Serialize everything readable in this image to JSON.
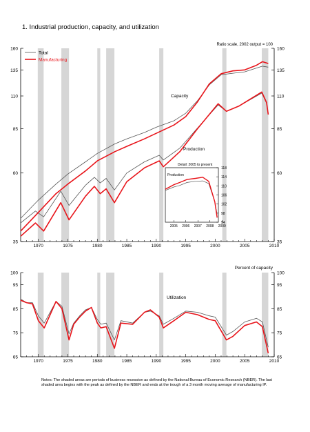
{
  "page": {
    "title": "1.  Industrial production, capacity, and utilization",
    "notes": "Notes: The shaded areas are periods of business recession as defined by the National Bureau of Economic Research (NBER). The last shaded area begins with the peak as defined by the NBER and ends at the trough of a 3 month moving average of manufacturing IP."
  },
  "colors": {
    "total": "#555555",
    "manufacturing": "#e8141a",
    "recession": "#d6d6d6",
    "axis": "#000000"
  },
  "chart_data": [
    {
      "type": "line",
      "id": "top",
      "scale": "log",
      "ylim": [
        35,
        160
      ],
      "xlim": [
        1967,
        2010
      ],
      "yticks": [
        35,
        60,
        85,
        110,
        135,
        160
      ],
      "xticks": [
        1970,
        1975,
        1980,
        1985,
        1990,
        1995,
        2000,
        2005,
        2010
      ],
      "scale_note": "Ratio scale, 2002 output = 100",
      "legend": [
        "Total",
        "Manufacturing"
      ],
      "legend_position": "top-left",
      "annotations": [
        "Capacity",
        "Production"
      ],
      "recessions": [
        [
          1969.9,
          1970.9
        ],
        [
          1973.9,
          1975.2
        ],
        [
          1980.0,
          1980.5
        ],
        [
          1981.5,
          1982.9
        ],
        [
          1990.5,
          1991.2
        ],
        [
          2001.2,
          2001.9
        ],
        [
          2007.9,
          2009.0
        ]
      ],
      "series": [
        {
          "name": "Total",
          "role": "capacity",
          "x": [
            1967,
            1970,
            1973,
            1975,
            1978,
            1980,
            1983,
            1985,
            1988,
            1990,
            1993,
            1995,
            1997,
            1999,
            2001,
            2003,
            2005,
            2007,
            2008,
            2009
          ],
          "values": [
            42.0,
            48.5,
            55.0,
            59.5,
            65.5,
            70.0,
            75.5,
            78.5,
            82.5,
            86.0,
            90.5,
            96.0,
            106.0,
            120.0,
            130.0,
            131.5,
            133.0,
            137.0,
            139.0,
            138.0
          ]
        },
        {
          "name": "Manufacturing",
          "role": "capacity",
          "x": [
            1967,
            1970,
            1973,
            1975,
            1978,
            1980,
            1983,
            1985,
            1988,
            1990,
            1993,
            1995,
            1997,
            1999,
            2001,
            2003,
            2005,
            2007,
            2008,
            2009
          ],
          "values": [
            38.0,
            44.0,
            51.0,
            55.0,
            61.0,
            66.0,
            71.0,
            74.0,
            78.5,
            82.0,
            87.5,
            93.5,
            105.0,
            121.0,
            131.0,
            134.0,
            135.0,
            140.0,
            144.0,
            142.0
          ]
        },
        {
          "name": "Total",
          "role": "production",
          "x": [
            1967,
            1969.5,
            1970.9,
            1973.8,
            1975.2,
            1978,
            1979.5,
            1980.5,
            1981.5,
            1982.9,
            1985,
            1988,
            1990.5,
            1991.2,
            1994,
            1997,
            2000.5,
            2001.9,
            2004,
            2007.9,
            2008.7,
            2009
          ],
          "values": [
            40.5,
            44.5,
            42.5,
            52.0,
            46.5,
            54.5,
            58.0,
            55.5,
            57.5,
            52.5,
            60.0,
            65.5,
            69.0,
            66.5,
            73.0,
            85.5,
            102.5,
            97.5,
            101.5,
            112.5,
            104.0,
            96.0
          ]
        },
        {
          "name": "Manufacturing",
          "role": "production",
          "x": [
            1967,
            1969.5,
            1970.9,
            1973.8,
            1975.2,
            1978,
            1979.5,
            1980.5,
            1981.5,
            1982.9,
            1985,
            1988,
            1990.5,
            1991.2,
            1994,
            1997,
            2000.5,
            2001.9,
            2004,
            2007.9,
            2008.7,
            2009
          ],
          "values": [
            36.5,
            40.5,
            38.0,
            47.5,
            41.5,
            50.0,
            54.0,
            51.0,
            53.0,
            47.5,
            56.0,
            62.5,
            66.0,
            63.0,
            71.0,
            85.0,
            103.5,
            97.5,
            101.5,
            113.5,
            104.5,
            95.0
          ]
        }
      ]
    },
    {
      "type": "line",
      "id": "inset",
      "title": "Detail: 2005 to present",
      "annotation": "Production",
      "ylim": [
        94,
        118
      ],
      "yticks": [
        94,
        98,
        102,
        106,
        110,
        114,
        118
      ],
      "xlim": [
        2004.8,
        2009.2
      ],
      "xticks": [
        "2005",
        "2006",
        "2007",
        "2008",
        "2009"
      ],
      "series": [
        {
          "name": "Total",
          "x": [
            2004.8,
            2005.5,
            2006.0,
            2006.6,
            2007.3,
            2007.9,
            2008.4,
            2008.9,
            2009.1
          ],
          "values": [
            108.0,
            109.5,
            110.2,
            111.5,
            112.0,
            112.2,
            111.0,
            103.0,
            97.5
          ]
        },
        {
          "name": "Manufacturing",
          "x": [
            2004.8,
            2005.5,
            2006.0,
            2006.6,
            2007.3,
            2007.9,
            2008.4,
            2008.9,
            2009.1
          ],
          "values": [
            108.5,
            110.5,
            111.5,
            112.8,
            113.3,
            113.8,
            112.0,
            103.0,
            96.0
          ]
        }
      ]
    },
    {
      "type": "line",
      "id": "bottom",
      "ylim": [
        65,
        100
      ],
      "xlim": [
        1967,
        2010
      ],
      "yticks": [
        65,
        75,
        85,
        95,
        100
      ],
      "xticks": [
        1970,
        1975,
        1980,
        1985,
        1990,
        1995,
        2000,
        2005,
        2010
      ],
      "unit_label": "Percent of capacity",
      "annotation": "Utilization",
      "recessions": [
        [
          1969.9,
          1970.9
        ],
        [
          1973.9,
          1975.2
        ],
        [
          1980.0,
          1980.5
        ],
        [
          1981.5,
          1982.9
        ],
        [
          1990.5,
          1991.2
        ],
        [
          2001.2,
          2001.9
        ],
        [
          2007.9,
          2009.0
        ]
      ],
      "series": [
        {
          "name": "Total",
          "x": [
            1967,
            1968,
            1969,
            1970,
            1971,
            1972,
            1973,
            1974,
            1975.2,
            1976,
            1977,
            1978,
            1979,
            1980,
            1980.6,
            1981.5,
            1982.9,
            1984,
            1986,
            1988,
            1989,
            1990.5,
            1991.2,
            1993,
            1995,
            1997,
            1999,
            2000,
            2001.9,
            2003,
            2005,
            2007,
            2008,
            2009
          ],
          "values": [
            89.0,
            87.5,
            87.5,
            82.0,
            79.0,
            83.5,
            88.0,
            86.0,
            74.5,
            79.0,
            82.0,
            84.5,
            85.5,
            80.5,
            78.5,
            79.0,
            72.0,
            80.0,
            79.0,
            83.5,
            84.0,
            82.0,
            78.5,
            81.0,
            84.0,
            83.5,
            82.0,
            81.5,
            74.0,
            75.5,
            79.5,
            81.0,
            79.5,
            69.0
          ]
        },
        {
          "name": "Manufacturing",
          "x": [
            1967,
            1968,
            1969,
            1970,
            1971,
            1972,
            1973,
            1974,
            1975.2,
            1976,
            1977,
            1978,
            1979,
            1980,
            1980.6,
            1981.5,
            1982.9,
            1984,
            1986,
            1988,
            1989,
            1990.5,
            1991.2,
            1993,
            1995,
            1997,
            1999,
            2000,
            2001.9,
            2003,
            2005,
            2007,
            2008,
            2009
          ],
          "values": [
            88.5,
            87.5,
            87.0,
            80.0,
            77.0,
            82.5,
            88.0,
            85.0,
            72.0,
            78.5,
            81.5,
            84.0,
            85.5,
            79.0,
            77.0,
            77.5,
            68.5,
            79.0,
            78.5,
            83.5,
            84.5,
            81.5,
            77.0,
            80.0,
            83.5,
            82.5,
            80.5,
            80.0,
            72.0,
            73.5,
            78.0,
            79.5,
            77.5,
            66.5
          ]
        }
      ]
    }
  ]
}
